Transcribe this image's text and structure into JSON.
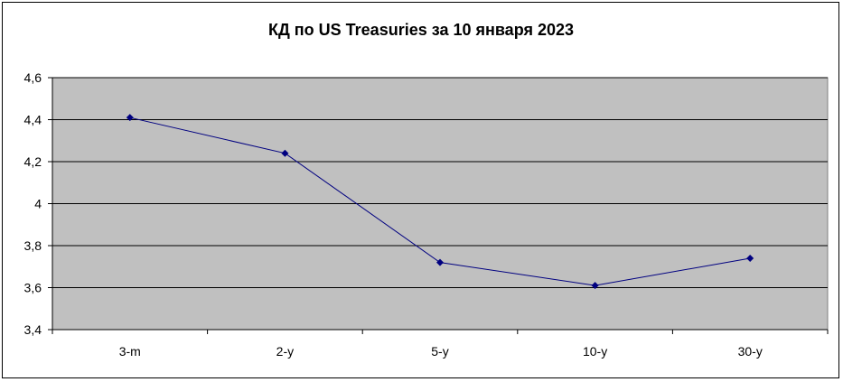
{
  "chart_data": {
    "type": "line",
    "title": "КД по US Treasuries за 10 января 2023",
    "xlabel": "",
    "ylabel": "",
    "categories": [
      "3-m",
      "2-y",
      "5-y",
      "10-y",
      "30-y"
    ],
    "series": [
      {
        "values": [
          4.41,
          4.24,
          3.72,
          3.61,
          3.74
        ]
      }
    ],
    "ylim": [
      3.4,
      4.6
    ],
    "yticks": [
      "3,4",
      "3,6",
      "3,8",
      "4",
      "4,2",
      "4,4",
      "4,6"
    ],
    "grid": true,
    "legend": "none",
    "colors": {
      "plot_bg": "#c0c0c0",
      "line": "#000080",
      "grid": "#000000"
    }
  }
}
